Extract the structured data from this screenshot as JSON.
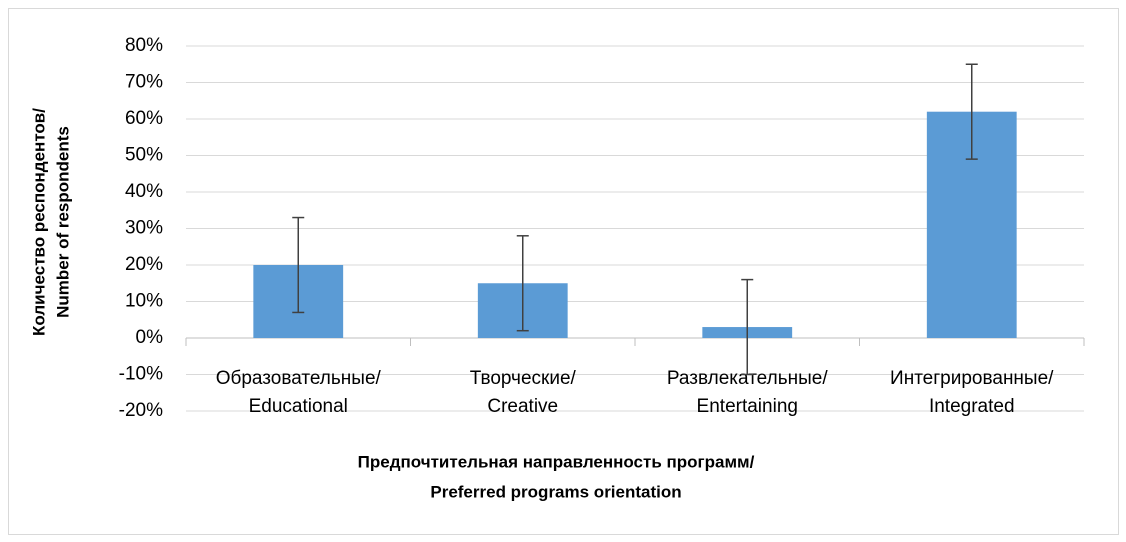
{
  "chart_data": {
    "type": "bar",
    "categories": [
      [
        "Образовательные/",
        "Educational"
      ],
      [
        "Творческие/",
        "Creative"
      ],
      [
        "Развлекательные/",
        "Entertaining"
      ],
      [
        "Интегрированные/",
        "Integrated"
      ]
    ],
    "values": [
      20,
      15,
      3,
      62
    ],
    "errors": [
      13,
      13,
      13,
      13
    ],
    "color": "#5b9bd5",
    "error_color": "#404040",
    "x_label": [
      "Предпочтительная направленность программ/",
      "Preferred programs orientation"
    ],
    "y_label": [
      "Количество респондентов/",
      "Number of respondents"
    ],
    "ylim": [
      -20,
      80
    ],
    "yticks": [
      {
        "value": -20,
        "label": "-20%"
      },
      {
        "value": -10,
        "label": "-10%"
      },
      {
        "value": 0,
        "label": "0%"
      },
      {
        "value": 10,
        "label": "10%"
      },
      {
        "value": 20,
        "label": "20%"
      },
      {
        "value": 30,
        "label": "30%"
      },
      {
        "value": 40,
        "label": "40%"
      },
      {
        "value": 50,
        "label": "50%"
      },
      {
        "value": 60,
        "label": "60%"
      },
      {
        "value": 70,
        "label": "70%"
      },
      {
        "value": 80,
        "label": "80%"
      }
    ],
    "grid": true
  }
}
